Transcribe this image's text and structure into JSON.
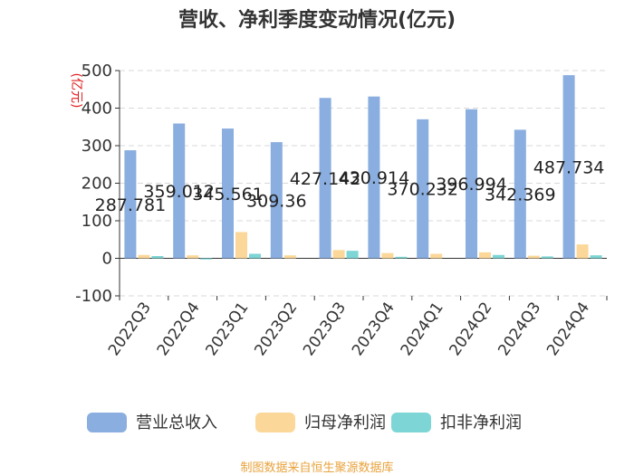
{
  "chart_data": {
    "type": "bar",
    "title": "营收、净利季度变动情况(亿元)",
    "ylabel": "(亿元)",
    "xlabel": "",
    "ylim": [
      -100,
      500
    ],
    "yticks": [
      -100,
      0,
      100,
      200,
      300,
      400,
      500
    ],
    "grid": true,
    "legend_position": "bottom",
    "categories": [
      "2022Q3",
      "2022Q4",
      "2023Q1",
      "2023Q2",
      "2023Q3",
      "2023Q4",
      "2024Q1",
      "2024Q2",
      "2024Q3",
      "2024Q4"
    ],
    "series": [
      {
        "name": "营业总收入",
        "color": "#8aaedf",
        "values": [
          287.781,
          359.012,
          345.561,
          309.36,
          427.142,
          430.914,
          370.232,
          396.994,
          342.369,
          487.734
        ],
        "labels": [
          "287.781",
          "359.012",
          "345.561",
          "309.36",
          "427.142",
          "430.914",
          "370.232",
          "396.994",
          "342.369",
          "487.734"
        ]
      },
      {
        "name": "归母净利润",
        "color": "#fbd89a",
        "values": [
          9,
          8,
          70,
          8,
          22,
          14,
          12,
          16,
          7,
          37
        ]
      },
      {
        "name": "扣非净利润",
        "color": "#7dd5d5",
        "values": [
          6,
          -3,
          12,
          0,
          20,
          4,
          0,
          9,
          5,
          8
        ]
      }
    ]
  },
  "footer": {
    "text": "制图数据来自恒生聚源数据库",
    "color": "#e8a33d"
  }
}
